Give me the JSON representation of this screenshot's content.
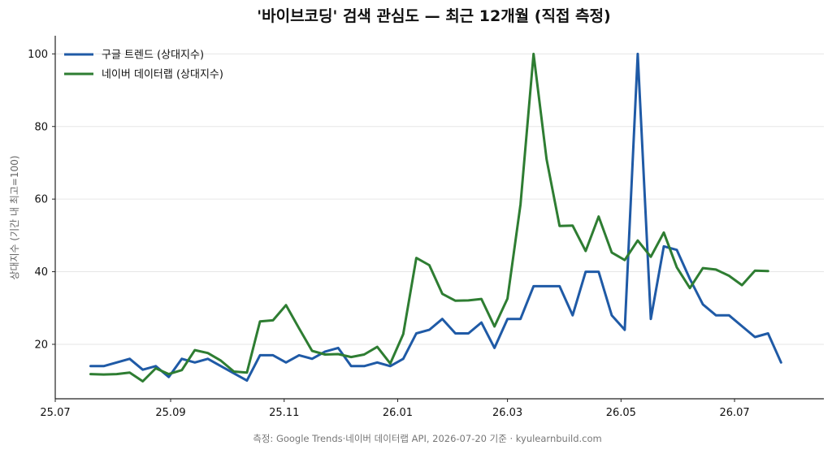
{
  "chart_data": {
    "type": "line",
    "title": "'바이브코딩' 검색 관심도 — 최근 12개월 (직접 측정)",
    "ylabel": "상대지수 (기간 내 최고=100)",
    "footer": "측정: Google Trends·네이버 데이터랩 API, 2026-07-20 기준 · kyulearnbuild.com",
    "ylim": [
      5,
      105
    ],
    "yticks": [
      20,
      40,
      60,
      80,
      100
    ],
    "x_range": [
      "2025-07-01",
      "2026-08-18"
    ],
    "xticks": [
      {
        "date": "2025-07-01",
        "label": "25.07"
      },
      {
        "date": "2025-09-01",
        "label": "25.09"
      },
      {
        "date": "2025-11-01",
        "label": "25.11"
      },
      {
        "date": "2026-01-01",
        "label": "26.01"
      },
      {
        "date": "2026-03-01",
        "label": "26.03"
      },
      {
        "date": "2026-05-01",
        "label": "26.05"
      },
      {
        "date": "2026-07-01",
        "label": "26.07"
      }
    ],
    "grid": "y",
    "legend_position": "top-left",
    "series": [
      {
        "name": "구글 트렌드 (상대지수)",
        "color": "#1f5aa6",
        "points": [
          [
            "2025-07-20",
            14
          ],
          [
            "2025-07-27",
            14
          ],
          [
            "2025-08-03",
            15
          ],
          [
            "2025-08-10",
            16
          ],
          [
            "2025-08-17",
            13
          ],
          [
            "2025-08-24",
            14
          ],
          [
            "2025-08-31",
            11
          ],
          [
            "2025-09-07",
            16
          ],
          [
            "2025-09-14",
            15
          ],
          [
            "2025-09-21",
            16
          ],
          [
            "2025-09-28",
            14
          ],
          [
            "2025-10-05",
            12
          ],
          [
            "2025-10-12",
            10
          ],
          [
            "2025-10-19",
            17
          ],
          [
            "2025-10-26",
            17
          ],
          [
            "2025-11-02",
            15
          ],
          [
            "2025-11-09",
            17
          ],
          [
            "2025-11-16",
            16
          ],
          [
            "2025-11-23",
            18
          ],
          [
            "2025-11-30",
            19
          ],
          [
            "2025-12-07",
            14
          ],
          [
            "2025-12-14",
            14
          ],
          [
            "2025-12-21",
            15
          ],
          [
            "2025-12-28",
            14
          ],
          [
            "2026-01-04",
            16
          ],
          [
            "2026-01-11",
            23
          ],
          [
            "2026-01-18",
            24
          ],
          [
            "2026-01-25",
            27
          ],
          [
            "2026-02-01",
            23
          ],
          [
            "2026-02-08",
            23
          ],
          [
            "2026-02-15",
            26
          ],
          [
            "2026-02-22",
            19
          ],
          [
            "2026-03-01",
            27
          ],
          [
            "2026-03-08",
            27
          ],
          [
            "2026-03-15",
            36
          ],
          [
            "2026-03-22",
            36
          ],
          [
            "2026-03-29",
            36
          ],
          [
            "2026-04-05",
            28
          ],
          [
            "2026-04-12",
            40
          ],
          [
            "2026-04-19",
            40
          ],
          [
            "2026-04-26",
            28
          ],
          [
            "2026-05-03",
            24
          ],
          [
            "2026-05-10",
            100
          ],
          [
            "2026-05-17",
            27
          ],
          [
            "2026-05-24",
            47
          ],
          [
            "2026-05-31",
            46
          ],
          [
            "2026-06-07",
            38
          ],
          [
            "2026-06-14",
            31
          ],
          [
            "2026-06-21",
            28
          ],
          [
            "2026-06-28",
            28
          ],
          [
            "2026-07-05",
            25
          ],
          [
            "2026-07-12",
            22
          ],
          [
            "2026-07-19",
            23
          ],
          [
            "2026-07-26",
            15
          ]
        ]
      },
      {
        "name": "네이버 데이터랩 (상대지수)",
        "color": "#2e7d32",
        "points": [
          [
            "2025-07-20",
            11.8
          ],
          [
            "2025-07-27",
            11.7
          ],
          [
            "2025-08-03",
            11.8
          ],
          [
            "2025-08-10",
            12.2
          ],
          [
            "2025-08-17",
            9.8
          ],
          [
            "2025-08-24",
            13.4
          ],
          [
            "2025-08-31",
            11.8
          ],
          [
            "2025-09-07",
            12.9
          ],
          [
            "2025-09-14",
            18.4
          ],
          [
            "2025-09-21",
            17.6
          ],
          [
            "2025-09-28",
            15.5
          ],
          [
            "2025-10-05",
            12.5
          ],
          [
            "2025-10-12",
            12.2
          ],
          [
            "2025-10-19",
            26.3
          ],
          [
            "2025-10-26",
            26.6
          ],
          [
            "2025-11-02",
            30.8
          ],
          [
            "2025-11-09",
            24.4
          ],
          [
            "2025-11-16",
            18.2
          ],
          [
            "2025-11-23",
            17.2
          ],
          [
            "2025-11-30",
            17.3
          ],
          [
            "2025-12-07",
            16.5
          ],
          [
            "2025-12-14",
            17.2
          ],
          [
            "2025-12-21",
            19.3
          ],
          [
            "2025-12-28",
            14.7
          ],
          [
            "2026-01-04",
            22.8
          ],
          [
            "2026-01-11",
            43.8
          ],
          [
            "2026-01-18",
            41.8
          ],
          [
            "2026-01-25",
            33.9
          ],
          [
            "2026-02-01",
            32.0
          ],
          [
            "2026-02-08",
            32.1
          ],
          [
            "2026-02-15",
            32.5
          ],
          [
            "2026-02-22",
            24.9
          ],
          [
            "2026-03-01",
            32.6
          ],
          [
            "2026-03-08",
            58.5
          ],
          [
            "2026-03-15",
            100
          ],
          [
            "2026-03-22",
            71.0
          ],
          [
            "2026-03-29",
            52.6
          ],
          [
            "2026-04-05",
            52.7
          ],
          [
            "2026-04-12",
            45.7
          ],
          [
            "2026-04-19",
            55.2
          ],
          [
            "2026-04-26",
            45.3
          ],
          [
            "2026-05-03",
            43.2
          ],
          [
            "2026-05-10",
            48.6
          ],
          [
            "2026-05-17",
            44.1
          ],
          [
            "2026-05-24",
            50.8
          ],
          [
            "2026-05-31",
            41.2
          ],
          [
            "2026-06-07",
            35.5
          ],
          [
            "2026-06-14",
            41.0
          ],
          [
            "2026-06-21",
            40.6
          ],
          [
            "2026-06-28",
            38.9
          ],
          [
            "2026-07-05",
            36.3
          ],
          [
            "2026-07-12",
            40.3
          ],
          [
            "2026-07-19",
            40.2
          ]
        ]
      }
    ]
  }
}
